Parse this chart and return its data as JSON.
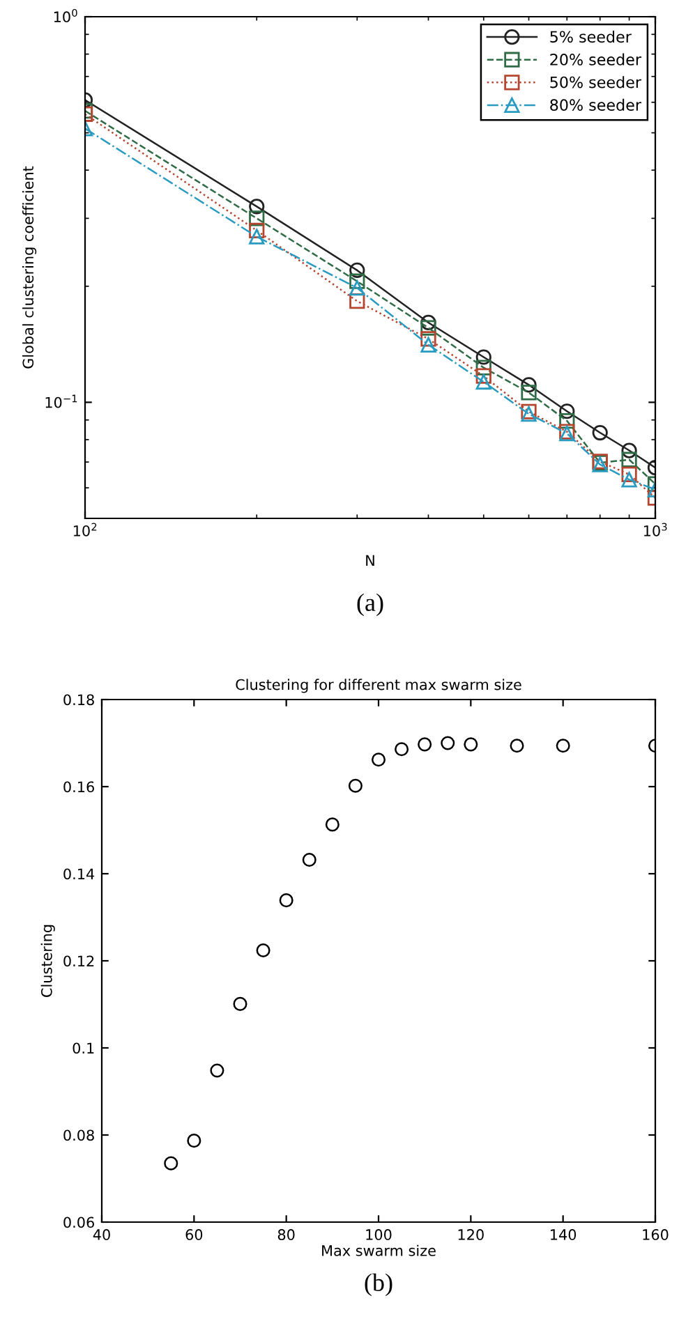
{
  "chart_data": [
    {
      "type": "line",
      "xlabel": "N",
      "ylabel": "Global clustering coefficient",
      "log": "xy",
      "x": [
        100,
        200,
        300,
        400,
        500,
        600,
        700,
        800,
        900,
        1000
      ],
      "xlim": [
        100,
        1000
      ],
      "ylim": [
        0.05,
        1
      ],
      "xticks": [
        {
          "value": 100,
          "label": "10$^{2}$"
        },
        {
          "value": 1000,
          "label": "10$^{3}$"
        }
      ],
      "yticks": [
        {
          "value": 0.1,
          "label": "10$^{−1}$"
        },
        {
          "value": 1,
          "label": "10$^{0}$"
        }
      ],
      "grid": false,
      "legend": "top right",
      "series": [
        {
          "name": "5% seeder",
          "color": "#222222",
          "marker": "circle",
          "line_style": "solid",
          "values": [
            0.608,
            0.322,
            0.22,
            0.161,
            0.131,
            0.111,
            0.0948,
            0.0834,
            0.075,
            0.0677
          ]
        },
        {
          "name": "20% seeder",
          "color": "#2f6b45",
          "marker": "square",
          "line_style": "dashed",
          "values": [
            0.57,
            0.3,
            0.206,
            0.156,
            0.123,
            0.106,
            0.0895,
            0.0697,
            0.071,
            0.0614
          ]
        },
        {
          "name": "50% seeder",
          "color": "#b5452f",
          "marker": "square",
          "line_style": "dotted",
          "values": [
            0.559,
            0.279,
            0.183,
            0.146,
            0.117,
            0.0946,
            0.0839,
            0.0702,
            0.065,
            0.0565
          ]
        },
        {
          "name": "80% seeder",
          "color": "#2a9bc0",
          "marker": "triangle",
          "line_style": "dashdot",
          "values": [
            0.513,
            0.269,
            0.198,
            0.141,
            0.113,
            0.0933,
            0.083,
            0.069,
            0.063,
            0.0594
          ]
        }
      ],
      "annotations": [
        "(a)"
      ]
    },
    {
      "type": "scatter",
      "title": "Clustering for different max swarm size",
      "xlabel": "Max swarm size",
      "ylabel": "Clustering",
      "x": [
        55,
        60,
        65,
        70,
        75,
        80,
        85,
        90,
        95,
        100,
        105,
        110,
        115,
        120,
        130,
        140,
        160
      ],
      "values": [
        0.0735,
        0.0787,
        0.0948,
        0.1101,
        0.1224,
        0.1339,
        0.1432,
        0.1513,
        0.1602,
        0.1662,
        0.1686,
        0.1697,
        0.17,
        0.1697,
        0.1694,
        0.1694,
        0.1694
      ],
      "color": "#000000",
      "marker": "circle",
      "xlim": [
        40,
        160
      ],
      "ylim": [
        0.06,
        0.18
      ],
      "xticks": [
        40,
        60,
        80,
        100,
        120,
        140,
        160
      ],
      "yticks": [
        0.06,
        0.08,
        0.1,
        0.12,
        0.14,
        0.16,
        0.18
      ],
      "grid": false,
      "annotations": [
        "(b)"
      ]
    }
  ]
}
